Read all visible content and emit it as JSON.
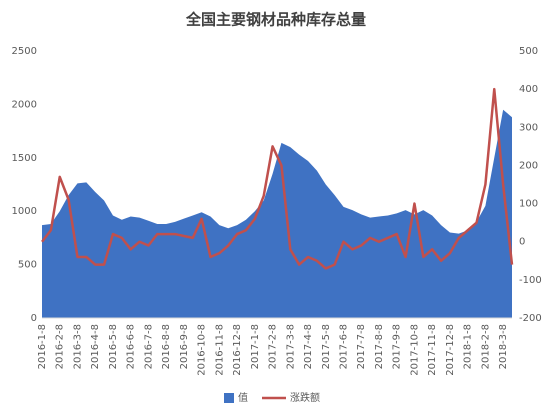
{
  "chart_data": {
    "type": "area-line",
    "title": "全国主要钢材品种库存总量",
    "categories": [
      "2016-1-8",
      null,
      "2016-2-8",
      null,
      "2016-3-8",
      null,
      "2016-4-8",
      null,
      "2016-5-8",
      null,
      "2016-6-8",
      null,
      "2016-7-8",
      null,
      "2016-8-8",
      null,
      "2016-9-8",
      null,
      "2016-10-8",
      null,
      "2016-11-8",
      null,
      "2016-12-8",
      null,
      "2017-1-8",
      null,
      "2017-2-8",
      null,
      "2017-3-8",
      null,
      "2017-4-8",
      null,
      "2017-5-8",
      null,
      "2017-6-8",
      null,
      "2017-7-8",
      null,
      "2017-8-8",
      null,
      "2017-9-8",
      null,
      "2017-10-8",
      null,
      "2017-11-8",
      null,
      "2017-12-8",
      null,
      "2018-1-8",
      null,
      "2018-2-8",
      null,
      "2018-3-8",
      null
    ],
    "series": [
      {
        "name": "值",
        "color": "#3f72c3",
        "values": [
          870,
          880,
          1000,
          1150,
          1260,
          1270,
          1180,
          1100,
          960,
          920,
          950,
          940,
          910,
          880,
          880,
          900,
          930,
          960,
          990,
          950,
          870,
          840,
          870,
          920,
          1000,
          1100,
          1350,
          1640,
          1600,
          1530,
          1470,
          1380,
          1250,
          1150,
          1040,
          1010,
          970,
          940,
          950,
          960,
          980,
          1010,
          970,
          1010,
          960,
          870,
          800,
          790,
          820,
          900,
          1050,
          1500,
          1950,
          1880
        ]
      },
      {
        "name": "涨跌额",
        "color": "#c0504d",
        "axis": "y2",
        "values": [
          0,
          30,
          170,
          110,
          -40,
          -40,
          -60,
          -60,
          20,
          10,
          -20,
          0,
          -10,
          20,
          20,
          20,
          15,
          10,
          60,
          -40,
          -30,
          -10,
          20,
          30,
          60,
          120,
          250,
          200,
          -20,
          -60,
          -40,
          -50,
          -70,
          -60,
          0,
          -20,
          -10,
          10,
          0,
          10,
          20,
          -40,
          100,
          -40,
          -20,
          -50,
          -30,
          10,
          30,
          50,
          150,
          400,
          150,
          -60
        ]
      }
    ],
    "ylim": [
      0,
      2500
    ],
    "yticks": [
      0,
      500,
      1000,
      1500,
      2000,
      2500
    ],
    "y2lim": [
      -200,
      500
    ],
    "y2ticks": [
      -200,
      -100,
      0,
      100,
      200,
      300,
      400,
      500
    ]
  }
}
